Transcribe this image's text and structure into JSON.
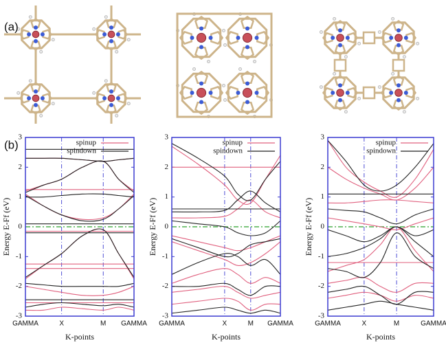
{
  "panel_labels": [
    "(a)",
    "(b)"
  ],
  "chart_data": [
    {
      "type": "band",
      "ylabel": "Energy E-Ff (eV)",
      "xlabel": "K-points",
      "x": [
        0,
        0.5,
        1,
        1.575,
        2.15,
        2.575,
        3
      ],
      "xlim": [
        0,
        3
      ],
      "xticks": [
        {
          "value": 0,
          "label": "GAMMA"
        },
        {
          "value": 1,
          "label": "X"
        },
        {
          "value": 2.15,
          "label": "M"
        },
        {
          "value": 3,
          "label": "GAMMA"
        }
      ],
      "ylim": [
        -3,
        3
      ],
      "yticks": [
        -3,
        -2,
        -1,
        0,
        1,
        2,
        3
      ],
      "fermi_level": 0,
      "legend": "upper right",
      "series": [
        {
          "name": "spinup",
          "color": "#e0607e",
          "bands": [
            [
              2.3,
              2.3,
              2.3,
              2.25,
              2.2,
              2.25,
              2.3
            ],
            [
              1.2,
              1.4,
              1.6,
              2.0,
              2.2,
              1.6,
              1.2
            ],
            [
              1.25,
              1.25,
              1.25,
              1.25,
              1.25,
              1.25,
              1.25
            ],
            [
              1.1,
              0.7,
              0.4,
              0.25,
              0.3,
              0.6,
              1.1
            ],
            [
              -0.15,
              -0.15,
              -0.15,
              -0.15,
              -0.15,
              -0.15,
              -0.15
            ],
            [
              -1.75,
              -1.3,
              -0.9,
              -0.3,
              -0.1,
              -0.9,
              -1.75
            ],
            [
              -1.25,
              -1.25,
              -1.25,
              -1.25,
              -1.25,
              -1.25,
              -1.25
            ],
            [
              -1.4,
              -1.4,
              -1.4,
              -1.4,
              -1.4,
              -1.4,
              -1.4
            ],
            [
              -2.0,
              -2.1,
              -2.2,
              -2.3,
              -2.3,
              -2.2,
              -2.0
            ],
            [
              -2.55,
              -2.55,
              -2.55,
              -2.55,
              -2.55,
              -2.55,
              -2.55
            ],
            [
              -2.8,
              -2.8,
              -2.7,
              -2.75,
              -2.8,
              -2.7,
              -2.8
            ]
          ]
        },
        {
          "name": "spindown",
          "color": "#222222",
          "bands": [
            [
              2.6,
              2.6,
              2.6,
              2.6,
              2.6,
              2.6,
              2.6
            ],
            [
              2.3,
              2.3,
              2.3,
              2.25,
              2.2,
              2.25,
              2.3
            ],
            [
              1.15,
              1.4,
              1.6,
              2.0,
              2.2,
              1.6,
              1.15
            ],
            [
              1.0,
              1.0,
              1.05,
              1.1,
              1.1,
              1.05,
              1.0
            ],
            [
              1.05,
              0.7,
              0.4,
              0.2,
              0.25,
              0.6,
              1.05
            ],
            [
              0.1,
              0.1,
              0.1,
              0.1,
              0.1,
              0.1,
              0.1
            ],
            [
              -0.2,
              -0.2,
              -0.2,
              -0.2,
              -0.2,
              -0.2,
              -0.2
            ],
            [
              -1.7,
              -1.3,
              -0.9,
              -0.3,
              -0.1,
              -0.9,
              -1.7
            ],
            [
              -1.9,
              -1.95,
              -2.0,
              -2.0,
              -2.0,
              -2.0,
              -1.9
            ],
            [
              -2.45,
              -2.45,
              -2.45,
              -2.45,
              -2.45,
              -2.45,
              -2.45
            ],
            [
              -2.7,
              -2.6,
              -2.55,
              -2.6,
              -2.65,
              -2.6,
              -2.7
            ]
          ]
        }
      ]
    },
    {
      "type": "band",
      "ylabel": "Energy E-Ff (eV)",
      "xlabel": "K-points",
      "x": [
        0,
        0.73,
        1.46,
        1.82,
        2.18,
        2.59,
        3
      ],
      "xlim": [
        0,
        3
      ],
      "xticks": [
        {
          "value": 0,
          "label": "GAMMA"
        },
        {
          "value": 1.46,
          "label": "X"
        },
        {
          "value": 2.18,
          "label": "M"
        },
        {
          "value": 3,
          "label": "GAMMA"
        }
      ],
      "ylim": [
        -3,
        3
      ],
      "yticks": [
        -3,
        -2,
        -1,
        0,
        1,
        2,
        3
      ],
      "fermi_level": 0,
      "legend": "upper right",
      "series": [
        {
          "name": "spinup",
          "color": "#e0607e",
          "bands": [
            [
              2.7,
              2.1,
              1.4,
              0.9,
              0.8,
              1.6,
              2.4
            ],
            [
              2.0,
              2.0,
              2.0,
              2.0,
              2.0,
              2.0,
              2.0
            ],
            [
              0.3,
              0.3,
              0.35,
              0.6,
              0.9,
              0.5,
              0.3
            ],
            [
              -0.3,
              -0.5,
              -0.7,
              -0.8,
              -0.7,
              -0.5,
              -0.3
            ],
            [
              -0.5,
              -0.8,
              -1.1,
              -1.3,
              -1.2,
              -0.9,
              -0.5
            ],
            [
              -1.9,
              -1.6,
              -1.4,
              -1.6,
              -1.9,
              -1.7,
              -1.9
            ],
            [
              -2.2,
              -2.1,
              -2.0,
              -2.2,
              -2.4,
              -2.3,
              -2.2
            ],
            [
              -2.6,
              -2.5,
              -2.4,
              -2.5,
              -2.8,
              -2.6,
              -2.6
            ]
          ]
        },
        {
          "name": "spindown",
          "color": "#222222",
          "bands": [
            [
              2.8,
              2.3,
              1.7,
              1.1,
              0.9,
              1.6,
              2.2
            ],
            [
              0.5,
              0.5,
              0.55,
              0.9,
              1.2,
              0.8,
              0.5
            ],
            [
              0.6,
              0.6,
              0.6,
              0.6,
              0.6,
              0.6,
              0.6
            ],
            [
              0.2,
              0.1,
              0.0,
              -0.2,
              -0.3,
              -0.2,
              0.2
            ],
            [
              -0.4,
              -0.7,
              -1.0,
              -0.9,
              -0.6,
              -0.5,
              -0.4
            ],
            [
              -1.6,
              -1.2,
              -0.9,
              -1.0,
              -1.3,
              -1.1,
              -1.6
            ],
            [
              -2.0,
              -2.0,
              -1.9,
              -2.1,
              -2.3,
              -2.0,
              -2.0
            ],
            [
              -2.9,
              -2.8,
              -2.7,
              -2.8,
              -2.9,
              -2.8,
              -2.9
            ]
          ]
        }
      ]
    },
    {
      "type": "band",
      "ylabel": "Energy E-Ff (eV)",
      "xlabel": "K-points",
      "x": [
        0,
        0.515,
        1.03,
        1.49,
        1.95,
        2.475,
        3
      ],
      "xlim": [
        0,
        3
      ],
      "xticks": [
        {
          "value": 0,
          "label": "GAMMA"
        },
        {
          "value": 1.03,
          "label": "X"
        },
        {
          "value": 1.95,
          "label": "M"
        },
        {
          "value": 3,
          "label": "GAMMA"
        }
      ],
      "ylim": [
        -3,
        3
      ],
      "yticks": [
        -3,
        -2,
        -1,
        0,
        1,
        2,
        3
      ],
      "fermi_level": 0,
      "legend": "upper right",
      "series": [
        {
          "name": "spinup",
          "color": "#e0607e",
          "bands": [
            [
              2.9,
              2.0,
              1.5,
              1.2,
              1.0,
              1.6,
              2.6
            ],
            [
              2.0,
              1.6,
              1.3,
              1.1,
              0.9,
              1.3,
              2.0
            ],
            [
              0.8,
              0.8,
              0.85,
              0.9,
              0.9,
              0.85,
              0.8
            ],
            [
              0.3,
              0.2,
              0.1,
              0.0,
              -0.1,
              0.1,
              0.3
            ],
            [
              -1.2,
              -1.2,
              -1.2,
              -1.2,
              -1.2,
              -1.2,
              -1.2
            ],
            [
              -1.5,
              -1.3,
              -1.1,
              -0.6,
              0.0,
              -0.8,
              -1.5
            ],
            [
              -1.9,
              -1.8,
              -1.7,
              -2.0,
              -2.2,
              -1.9,
              -1.9
            ],
            [
              -2.4,
              -2.3,
              -2.2,
              -2.3,
              -2.5,
              -2.3,
              -2.4
            ]
          ]
        },
        {
          "name": "spindown",
          "color": "#222222",
          "bands": [
            [
              2.9,
              2.2,
              1.4,
              1.2,
              1.4,
              2.0,
              2.8
            ],
            [
              1.1,
              1.1,
              1.1,
              1.1,
              1.1,
              1.1,
              1.1
            ],
            [
              0.6,
              0.55,
              0.5,
              0.3,
              0.1,
              0.4,
              0.6
            ],
            [
              -0.1,
              -0.3,
              -0.5,
              -0.3,
              0.0,
              -0.3,
              -0.1
            ],
            [
              -1.0,
              -0.9,
              -0.7,
              -0.4,
              0.0,
              -0.5,
              -1.0
            ],
            [
              -1.4,
              -1.5,
              -1.7,
              -1.2,
              -0.2,
              -1.0,
              -1.4
            ],
            [
              -2.2,
              -2.1,
              -2.0,
              -2.3,
              -2.6,
              -2.2,
              -2.2
            ],
            [
              -2.8,
              -2.7,
              -2.6,
              -2.5,
              -2.6,
              -2.7,
              -2.8
            ]
          ]
        }
      ]
    }
  ]
}
